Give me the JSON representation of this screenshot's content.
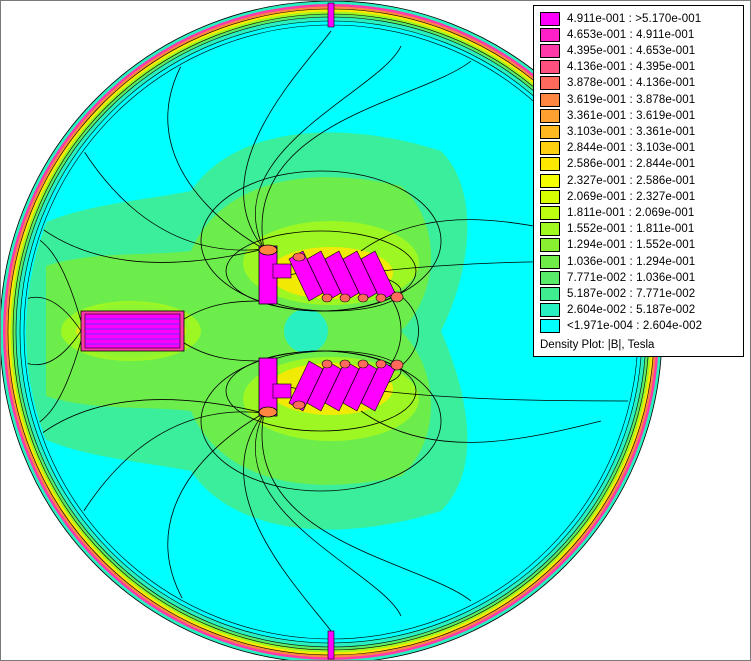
{
  "plot": {
    "quantity": "Density Plot: |B|, Tesla"
  },
  "legend": {
    "caption": "Density Plot: |B|, Tesla",
    "entries": [
      {
        "label": "4.911e-001 : >5.170e-001",
        "color": "#ff00ff"
      },
      {
        "label": "4.653e-001 : 4.911e-001",
        "color": "#ff20c8"
      },
      {
        "label": "4.395e-001 : 4.653e-001",
        "color": "#ff3aa8"
      },
      {
        "label": "4.136e-001 : 4.395e-001",
        "color": "#ff5080"
      },
      {
        "label": "3.878e-001 : 4.136e-001",
        "color": "#ff6a5c"
      },
      {
        "label": "3.619e-001 : 3.878e-001",
        "color": "#ff8640"
      },
      {
        "label": "3.361e-001 : 3.619e-001",
        "color": "#ffa030"
      },
      {
        "label": "3.103e-001 : 3.361e-001",
        "color": "#ffb820"
      },
      {
        "label": "2.844e-001 : 3.103e-001",
        "color": "#ffd010"
      },
      {
        "label": "2.586e-001 : 2.844e-001",
        "color": "#ffe800"
      },
      {
        "label": "2.327e-001 : 2.586e-001",
        "color": "#f4ff00"
      },
      {
        "label": "2.069e-001 : 2.327e-001",
        "color": "#d8ff00"
      },
      {
        "label": "1.811e-001 : 2.069e-001",
        "color": "#bcff10"
      },
      {
        "label": "1.552e-001 : 1.811e-001",
        "color": "#a0f820"
      },
      {
        "label": "1.294e-001 : 1.552e-001",
        "color": "#88f030"
      },
      {
        "label": "1.036e-001 : 1.294e-001",
        "color": "#70ec48"
      },
      {
        "label": "7.771e-002 : 1.036e-001",
        "color": "#58ea68"
      },
      {
        "label": "5.187e-002 : 7.771e-002",
        "color": "#40ec90"
      },
      {
        "label": "2.604e-002 : 5.187e-002",
        "color": "#28f0c0"
      },
      {
        "label": "<1.971e-004 : 2.604e-002",
        "color": "#00ffff"
      }
    ]
  }
}
